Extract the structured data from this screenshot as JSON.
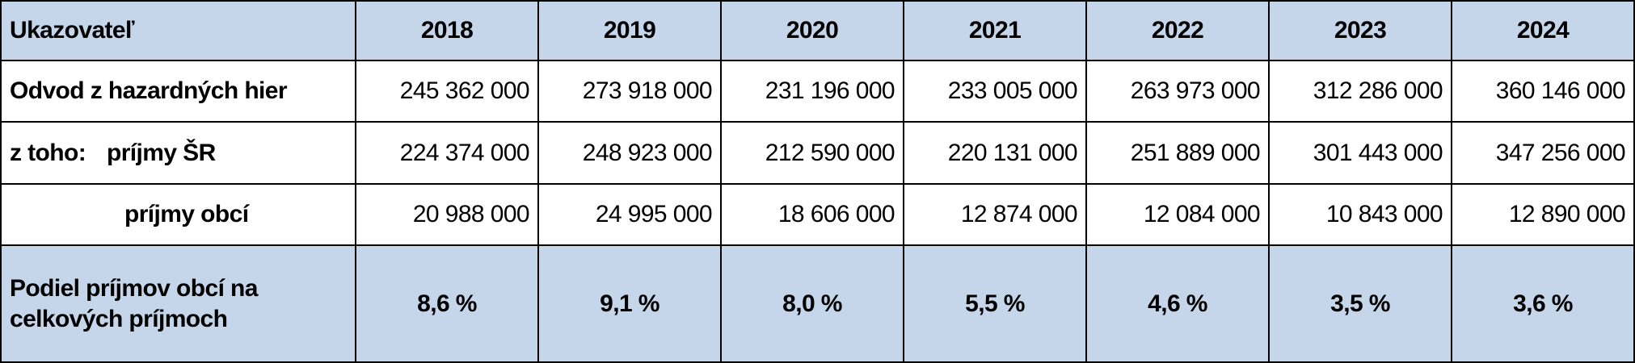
{
  "table": {
    "header": [
      "Ukazovateľ",
      "2018",
      "2019",
      "2020",
      "2021",
      "2022",
      "2023",
      "2024"
    ],
    "rows": [
      {
        "label": "Odvod z hazardných hier",
        "values": [
          "245 362 000",
          "273 918 000",
          "231 196 000",
          "233 005 000",
          "263 973 000",
          "312 286 000",
          "360 146 000"
        ]
      },
      {
        "prefix": "z toho:",
        "label": "príjmy ŠR",
        "values": [
          "224 374 000",
          "248 923 000",
          "212 590 000",
          "220 131 000",
          "251 889 000",
          "301 443 000",
          "347 256 000"
        ]
      },
      {
        "label": "príjmy obcí",
        "values": [
          "20 988 000",
          "24 995 000",
          "18 606 000",
          "12 874 000",
          "12 084 000",
          "10 843 000",
          "12 890 000"
        ]
      },
      {
        "label": "Podiel príjmov obcí na celkových príjmoch",
        "values": [
          "8,6 %",
          "9,1 %",
          "8,0 %",
          "5,5 %",
          "4,6 %",
          "3,5 %",
          "3,6 %"
        ]
      }
    ]
  }
}
